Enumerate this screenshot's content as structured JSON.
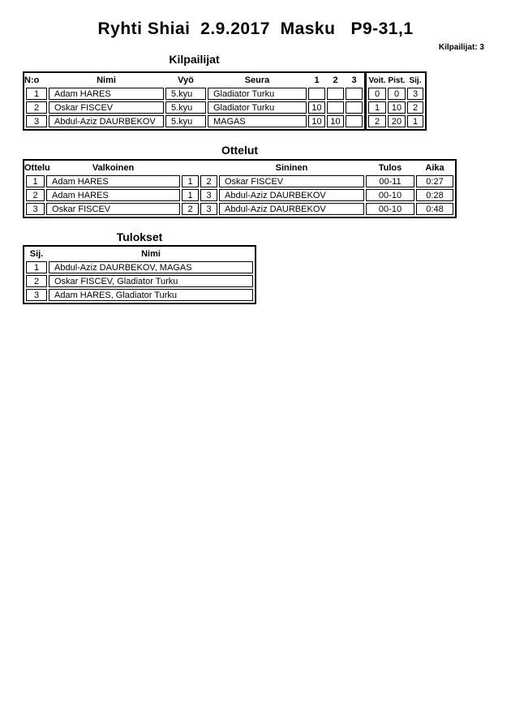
{
  "page": {
    "title": "Ryhti Shiai  2.9.2017  Masku   P9-31,1",
    "competitors_count_label": "Kilpailijat: 3",
    "background_color": "#ffffff",
    "text_color": "#000000",
    "border_color": "#000000"
  },
  "competitors": {
    "heading": "Kilpailijat",
    "columns": [
      "N:o",
      "Nimi",
      "Vyö",
      "Seura",
      "1",
      "2",
      "3",
      "Voit.",
      "Pist.",
      "Sij."
    ],
    "rows": [
      {
        "no": "1",
        "name": "Adam HARES",
        "belt": "5.kyu",
        "club": "Gladiator Turku",
        "m1": "",
        "m2": "",
        "m3": "",
        "wins": "0",
        "points": "0",
        "place": "3"
      },
      {
        "no": "2",
        "name": "Oskar FISCEV",
        "belt": "5.kyu",
        "club": "Gladiator Turku",
        "m1": "10",
        "m2": "",
        "m3": "",
        "wins": "1",
        "points": "10",
        "place": "2"
      },
      {
        "no": "3",
        "name": "Abdul-Aziz DAURBEKOV",
        "belt": "5.kyu",
        "club": "MAGAS",
        "m1": "10",
        "m2": "10",
        "m3": "",
        "wins": "2",
        "points": "20",
        "place": "1"
      }
    ]
  },
  "matches": {
    "heading": "Ottelut",
    "columns": [
      "Ottelu",
      "Valkoinen",
      "",
      "",
      "Sininen",
      "Tulos",
      "Aika"
    ],
    "rows": [
      {
        "no": "1",
        "white": "Adam HARES",
        "white_no": "1",
        "blue_no": "2",
        "blue": "Oskar FISCEV",
        "result": "00-11",
        "time": "0:27"
      },
      {
        "no": "2",
        "white": "Adam HARES",
        "white_no": "1",
        "blue_no": "3",
        "blue": "Abdul-Aziz DAURBEKOV",
        "result": "00-10",
        "time": "0:28"
      },
      {
        "no": "3",
        "white": "Oskar FISCEV",
        "white_no": "2",
        "blue_no": "3",
        "blue": "Abdul-Aziz DAURBEKOV",
        "result": "00-10",
        "time": "0:48"
      }
    ]
  },
  "results": {
    "heading": "Tulokset",
    "columns": [
      "Sij.",
      "Nimi"
    ],
    "rows": [
      {
        "place": "1",
        "name": "Abdul-Aziz DAURBEKOV, MAGAS"
      },
      {
        "place": "2",
        "name": "Oskar FISCEV, Gladiator Turku"
      },
      {
        "place": "3",
        "name": "Adam HARES, Gladiator Turku"
      }
    ]
  }
}
